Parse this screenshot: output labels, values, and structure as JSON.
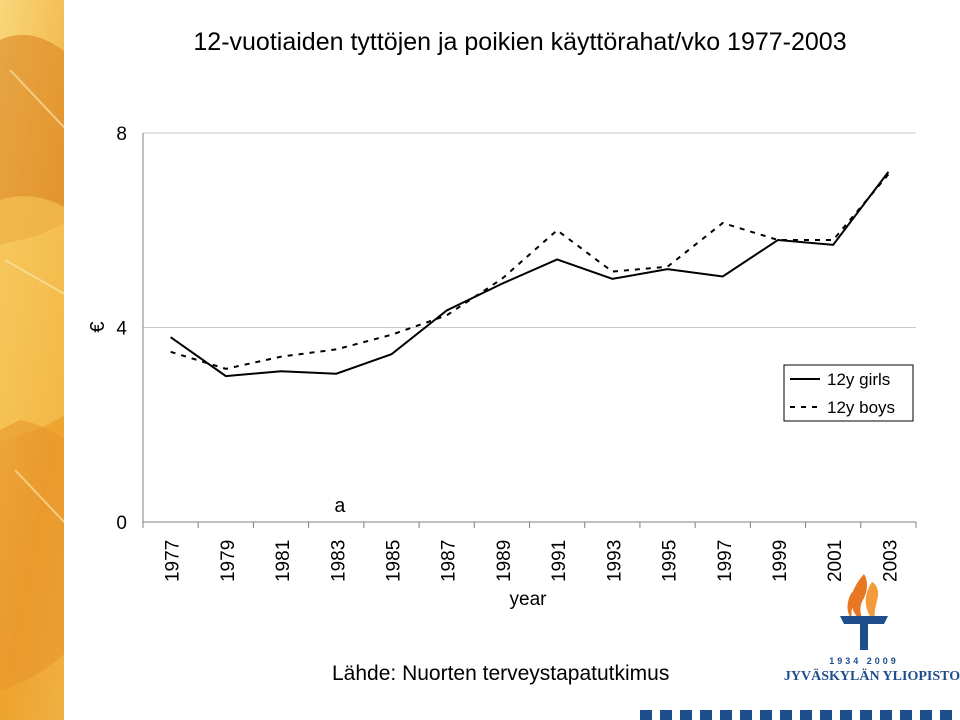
{
  "slide": {
    "title": "12-vuotiaiden tyttöjen ja poikien käyttörahat/vko 1977-2003",
    "source": "Lähde: Nuorten terveystapatutkimus",
    "stray_label": "a"
  },
  "logo": {
    "years": "1934 2009",
    "name": "JYVÄSKYLÄN YLIOPISTO",
    "color_flame": "#E87722",
    "color_blue": "#1F4E8C"
  },
  "colors": {
    "leaf_light": "#F6C85A",
    "leaf_mid": "#EDA32E",
    "leaf_dark": "#D97E1B",
    "line": "#000000",
    "gridline": "#C8C8C8"
  },
  "chart_data": {
    "type": "line",
    "title": "",
    "xlabel": "year",
    "ylabel": "€",
    "ylim": [
      0,
      8
    ],
    "yticks": [
      0,
      4,
      8
    ],
    "categories": [
      "1977",
      "1979",
      "1981",
      "1983",
      "1985",
      "1987",
      "1989",
      "1991",
      "1993",
      "1995",
      "1997",
      "1999",
      "2001",
      "2003"
    ],
    "series": [
      {
        "name": "12y girls",
        "style": "solid",
        "values": [
          3.8,
          3.0,
          3.1,
          3.05,
          3.45,
          4.35,
          4.9,
          5.4,
          5.0,
          5.2,
          5.05,
          5.8,
          5.7,
          7.2
        ]
      },
      {
        "name": "12y boys",
        "style": "dashed",
        "values": [
          3.5,
          3.15,
          3.4,
          3.55,
          3.85,
          4.25,
          5.0,
          6.0,
          5.15,
          5.25,
          6.15,
          5.8,
          5.8,
          7.15
        ]
      }
    ],
    "grid": true,
    "legend_position": "right"
  }
}
